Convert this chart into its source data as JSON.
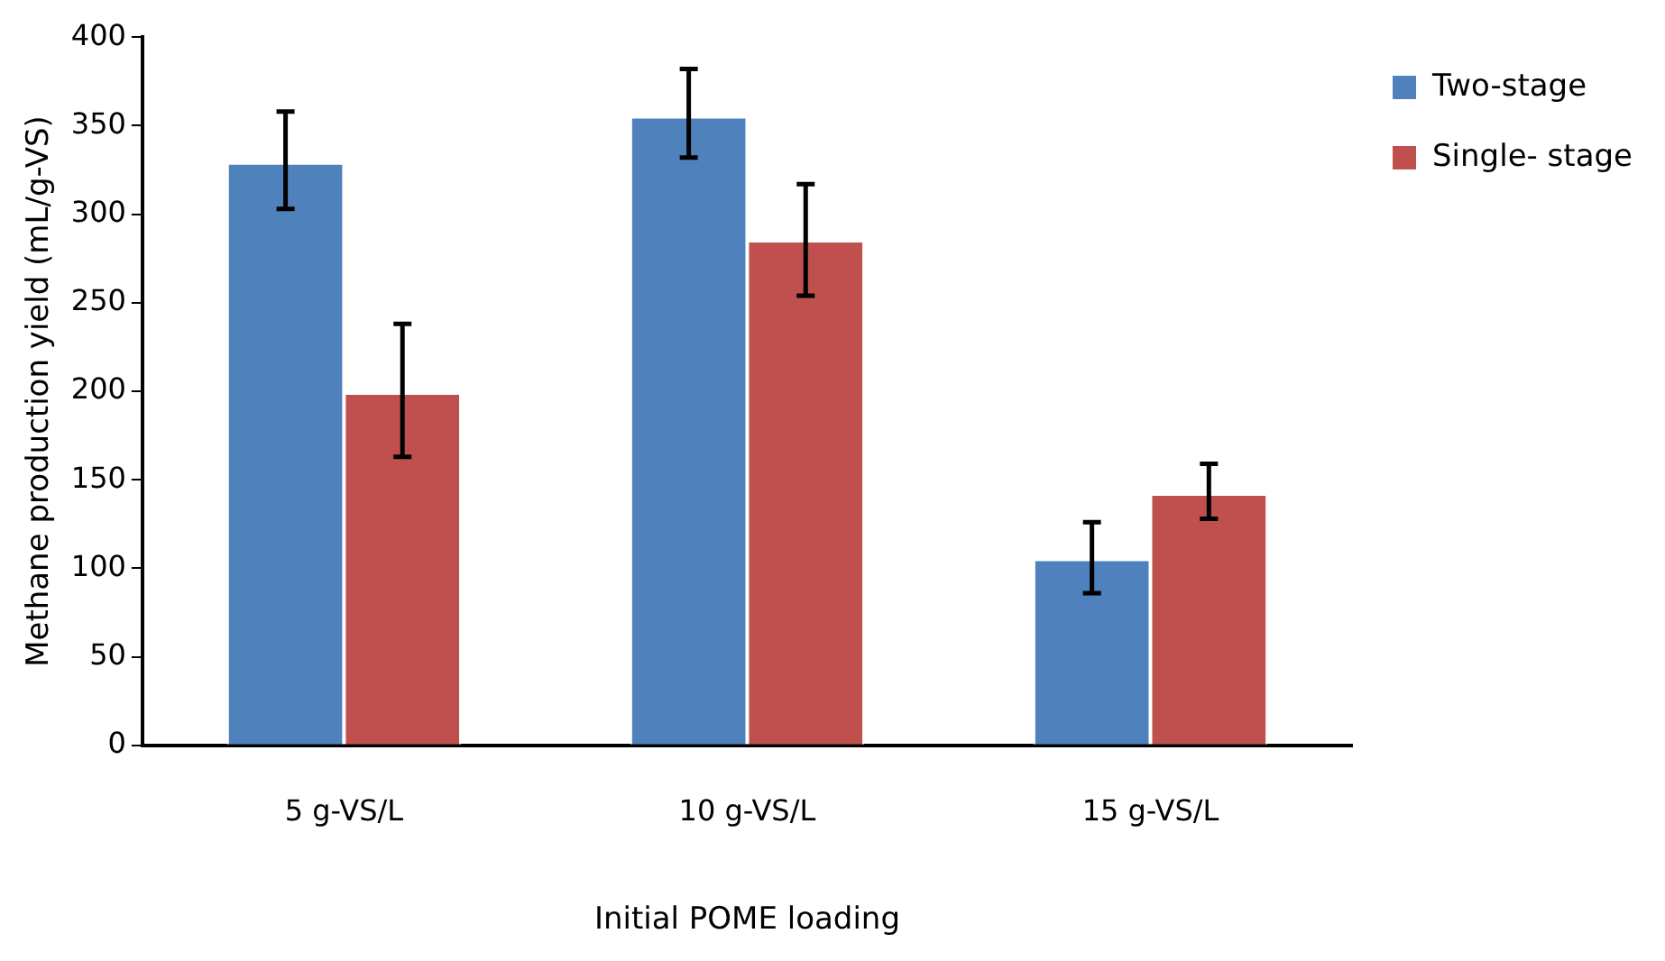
{
  "chart_data": {
    "type": "bar",
    "xlabel": "Initial POME loading",
    "ylabel": "Methane production yield (mL/g-VS)",
    "categories": [
      "5 g-VS/L",
      "10 g-VS/L",
      "15 g-VS/L"
    ],
    "series": [
      {
        "name": "Two-stage",
        "color": "#4f81bd",
        "values": [
          329,
          355,
          105
        ],
        "errors": [
          [
            303,
            358
          ],
          [
            332,
            382
          ],
          [
            86,
            126
          ]
        ]
      },
      {
        "name": "Single- stage",
        "color": "#c0504d",
        "values": [
          199,
          285,
          142
        ],
        "errors": [
          [
            163,
            238
          ],
          [
            254,
            317
          ],
          [
            128,
            159
          ]
        ]
      }
    ],
    "ylim": [
      0,
      400
    ],
    "yticks": [
      0,
      50,
      100,
      150,
      200,
      250,
      300,
      350,
      400
    ],
    "grid": false,
    "legend": "top right"
  }
}
